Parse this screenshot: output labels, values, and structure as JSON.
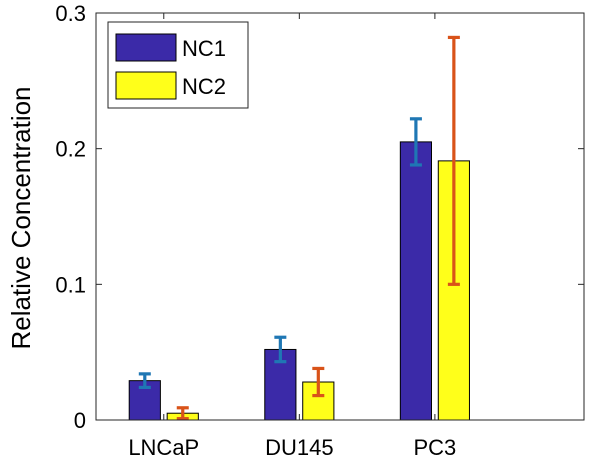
{
  "chart_data": {
    "type": "bar",
    "categories": [
      "LNCaP",
      "DU145",
      "PC3"
    ],
    "series": [
      {
        "name": "NC1",
        "values": [
          0.029,
          0.052,
          0.205
        ],
        "errors": [
          0.005,
          0.009,
          0.017
        ],
        "color": "#3b2aa8",
        "error_color": "#1f77b4"
      },
      {
        "name": "NC2",
        "values": [
          0.005,
          0.028,
          0.191
        ],
        "errors": [
          0.004,
          0.01,
          0.091
        ],
        "color": "#ffff1a",
        "error_color": "#d95319"
      }
    ],
    "xlabel": "",
    "ylabel": "Relative Concentration",
    "ylim": [
      0,
      0.3
    ],
    "yticks": [
      0,
      0.1,
      0.2,
      0.3
    ],
    "ytick_labels": [
      "0",
      "0.1",
      "0.2",
      "0.3"
    ],
    "grid": false,
    "legend": "top-left",
    "x_positions": [
      1,
      2,
      3
    ],
    "xlim": [
      0.5,
      4.1
    ]
  }
}
